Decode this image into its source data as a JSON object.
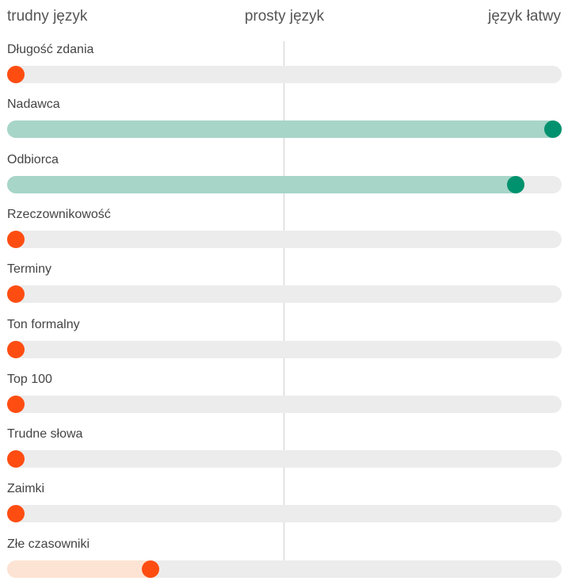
{
  "colors": {
    "track": "#ececec",
    "hard_dot": "#ff4d12",
    "hard_fill": "#fde3d3",
    "easy_dot": "#00926e",
    "easy_fill": "#a7d5c8"
  },
  "chart_data": {
    "type": "bar",
    "orientation": "horizontal",
    "scale_labels": [
      "trudny język",
      "prosty język",
      "język łatwy"
    ],
    "xlim": [
      0,
      1
    ],
    "categories": [
      "Długość zdania",
      "Nadawca",
      "Odbiorca",
      "Rzeczownikowość",
      "Terminy",
      "Ton formalny",
      "Top 100",
      "Trudne słowa",
      "Zaimki",
      "Złe czasowniki"
    ],
    "values": [
      0,
      1.0,
      0.93,
      0,
      0,
      0,
      0,
      0,
      0,
      0.25
    ]
  }
}
